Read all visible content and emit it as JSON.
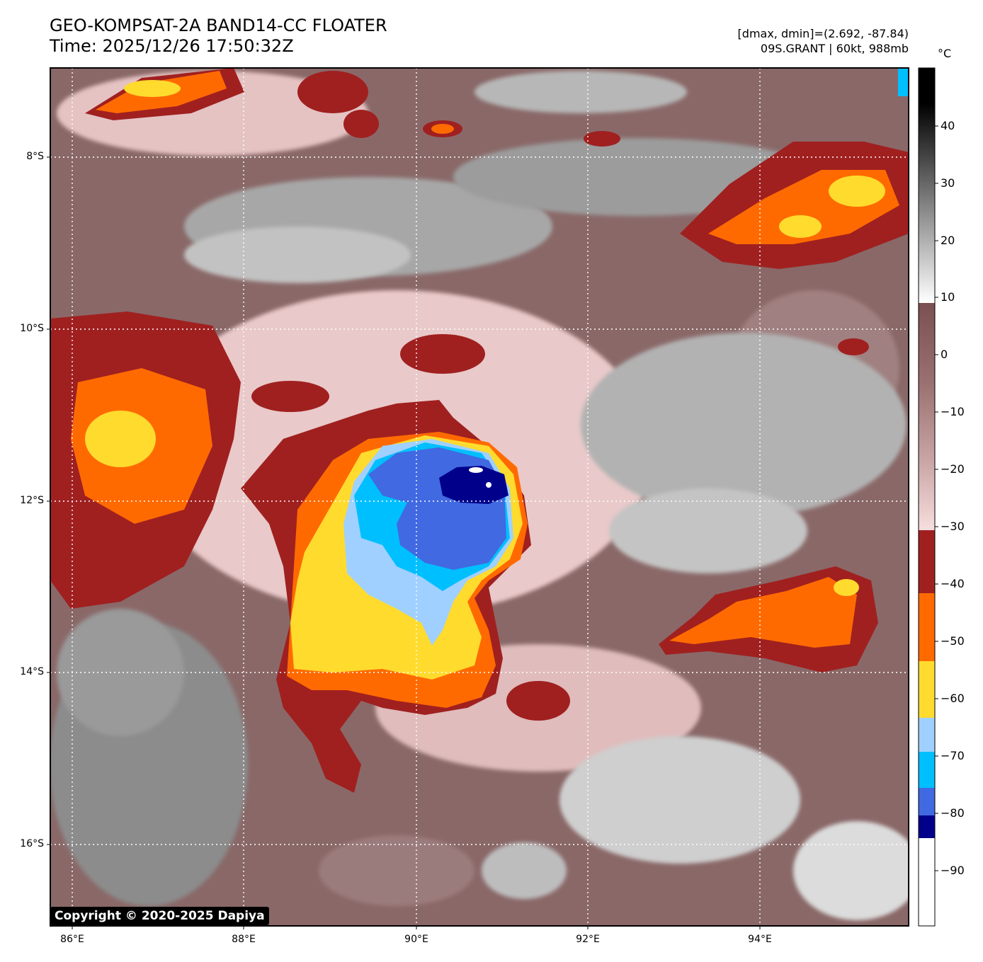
{
  "header": {
    "title": "GEO-KOMPSAT-2A BAND14-CC FLOATER",
    "time": "Time: 2025/12/26 17:50:32Z",
    "range": "[dmax, dmin]=(2.692, -87.84)",
    "storm": "09S.GRANT | 60kt, 988mb"
  },
  "colorbar": {
    "unit": "°C",
    "ticks": [
      "40",
      "30",
      "20",
      "10",
      "0",
      "−10",
      "−20",
      "−30",
      "−40",
      "−50",
      "−60",
      "−70",
      "−80",
      "−90"
    ],
    "segments": [
      {
        "from": -100,
        "to": -86,
        "color": "#ffffff"
      },
      {
        "from": -86,
        "to": -82,
        "color": "#00008b"
      },
      {
        "from": -82,
        "to": -77,
        "color": "#4169e1"
      },
      {
        "from": -77,
        "to": -71,
        "color": "#00bfff"
      },
      {
        "from": -71,
        "to": -65,
        "color": "#a0d0ff"
      },
      {
        "from": -65,
        "to": -55,
        "color": "#ffdb2e"
      },
      {
        "from": -55,
        "to": -44,
        "color": "#ff6a00"
      },
      {
        "from": -44,
        "to": -33,
        "color": "#a02020"
      },
      {
        "from": -33,
        "to": 8,
        "color": "gradient-pink-brown"
      },
      {
        "from": 8,
        "to": 50,
        "color": "gradient-white-black"
      }
    ]
  },
  "map": {
    "lat_labels": [
      "8°S",
      "10°S",
      "12°S",
      "14°S",
      "16°S"
    ],
    "lon_labels": [
      "86°E",
      "88°E",
      "90°E",
      "92°E",
      "94°E"
    ],
    "colors": {
      "warm_dark": "#7b5454",
      "warm_mid": "#9a7575",
      "pink": "#f0d0d0",
      "gray": "#8a8a8a",
      "light_gray": "#c8c8c8",
      "red": "#a02020",
      "orange": "#ff6a00",
      "yellow": "#ffdb2e",
      "pale_blue": "#a0d0ff",
      "cyan": "#00bfff",
      "blue": "#4169e1",
      "navy": "#00008b"
    }
  },
  "copyright": "Copyright © 2020-2025 Dapiya"
}
